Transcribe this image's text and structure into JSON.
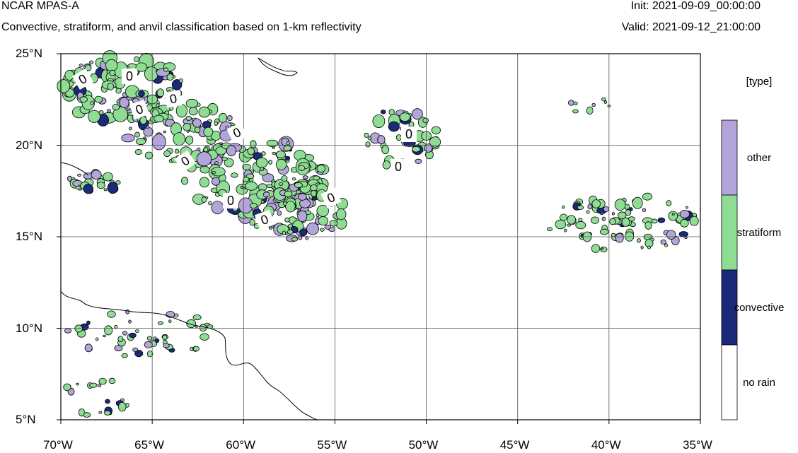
{
  "header": {
    "model": "NCAR MPAS-A",
    "description": "Convective, stratiform, and anvil classification based on 1-km reflectivity",
    "init": "Init: 2021-09-09_00:00:00",
    "valid": "Valid: 2021-09-12_21:00:00"
  },
  "map": {
    "lon_labels": [
      "70°W",
      "65°W",
      "60°W",
      "55°W",
      "50°W",
      "45°W",
      "40°W",
      "35°W"
    ],
    "lat_labels": [
      "25°N",
      "20°N",
      "15°N",
      "10°N",
      "5°N"
    ],
    "lon_range": [
      -70,
      -35
    ],
    "lat_range": [
      5,
      25
    ],
    "grid": true,
    "contour_label": "0"
  },
  "legend": {
    "title": "[type]",
    "items": [
      {
        "label": "other",
        "color": "#b3a4d9"
      },
      {
        "label": "stratiform",
        "color": "#8fdc94"
      },
      {
        "label": "convective",
        "color": "#1b2a78"
      },
      {
        "label": "no rain",
        "color": "#ffffff"
      }
    ]
  },
  "colors": {
    "stratiform": "#8fdc94",
    "other": "#b3a4d9",
    "convective": "#1b2a78",
    "outline": "#000000"
  }
}
